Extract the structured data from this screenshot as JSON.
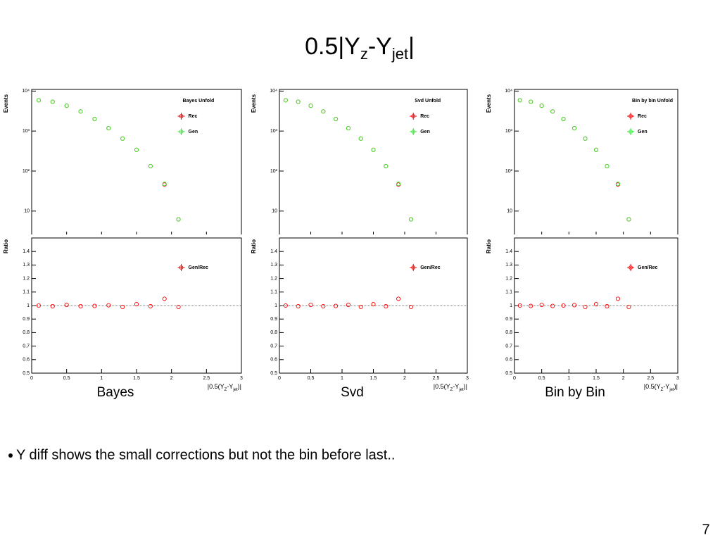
{
  "title": [
    "0.5|Y",
    "z",
    "-Y",
    "jet",
    "|"
  ],
  "bullet": "Y diff shows the small corrections but not the bin before last..",
  "page_number": "7",
  "chart_data": [
    {
      "type": "scatter",
      "ylabel": "Events",
      "legend_title": "Bayes Unfold",
      "legend": "upper right",
      "log_y": true,
      "x": [
        0.1,
        0.3,
        0.5,
        0.7,
        0.9,
        1.1,
        1.3,
        1.5,
        1.7,
        1.9,
        2.1
      ],
      "xlim": [
        0,
        3
      ],
      "xticks": [
        0,
        0.5,
        1,
        1.5,
        2,
        2.5,
        3
      ],
      "ylim": [
        2.4,
        11000
      ],
      "yticks": [
        {
          "value": 10,
          "label": "10"
        },
        {
          "value": 100,
          "label": "10²"
        },
        {
          "value": 1000,
          "label": "10³"
        },
        {
          "value": 10000,
          "label": "10⁴"
        }
      ],
      "series": [
        {
          "name": "Rec",
          "color": "#ff0000",
          "values": [
            5900,
            5400,
            4300,
            3100,
            2000,
            1180,
            650,
            340,
            133,
            46,
            6.2
          ]
        },
        {
          "name": "Gen",
          "color": "#33ee33",
          "values": [
            5900,
            5400,
            4300,
            3100,
            2000,
            1180,
            650,
            340,
            133,
            48,
            6.2
          ]
        }
      ]
    },
    {
      "type": "ratio",
      "ylabel": "Ratio",
      "xlabel": [
        "|0.5(Y",
        "Z",
        "-Y",
        "jet",
        ")|"
      ],
      "caption": "Bayes",
      "legend": "upper right",
      "x": [
        0.1,
        0.3,
        0.5,
        0.7,
        0.9,
        1.1,
        1.3,
        1.5,
        1.7,
        1.9,
        2.1
      ],
      "xlim": [
        0,
        3
      ],
      "xticks": [
        0,
        0.5,
        1,
        1.5,
        2,
        2.5,
        3
      ],
      "ylim": [
        0.5,
        1.5
      ],
      "yticks": [
        0.5,
        0.6,
        0.7,
        0.8,
        0.9,
        1,
        1.1,
        1.2,
        1.3,
        1.4
      ],
      "hline": 1,
      "series": [
        {
          "name": "Gen/Rec",
          "color": "#ff0000",
          "values": [
            1.0,
            0.995,
            1.005,
            0.995,
            0.997,
            1.002,
            0.99,
            1.01,
            0.995,
            1.05,
            0.99
          ]
        }
      ]
    },
    {
      "type": "scatter",
      "ylabel": "Events",
      "legend_title": "Svd Unfold",
      "legend": "upper right",
      "log_y": true,
      "x": [
        0.1,
        0.3,
        0.5,
        0.7,
        0.9,
        1.1,
        1.3,
        1.5,
        1.7,
        1.9,
        2.1
      ],
      "xlim": [
        0,
        3
      ],
      "xticks": [
        0,
        0.5,
        1,
        1.5,
        2,
        2.5,
        3
      ],
      "ylim": [
        2.4,
        11000
      ],
      "yticks": [
        {
          "value": 10,
          "label": "10"
        },
        {
          "value": 100,
          "label": "10²"
        },
        {
          "value": 1000,
          "label": "10³"
        },
        {
          "value": 10000,
          "label": "10⁴"
        }
      ],
      "series": [
        {
          "name": "Rec",
          "color": "#ff0000",
          "values": [
            5900,
            5400,
            4300,
            3100,
            2000,
            1180,
            650,
            340,
            133,
            46,
            6.2
          ]
        },
        {
          "name": "Gen",
          "color": "#33ee33",
          "values": [
            5900,
            5400,
            4300,
            3100,
            2000,
            1180,
            650,
            340,
            133,
            48,
            6.2
          ]
        }
      ]
    },
    {
      "type": "ratio",
      "ylabel": "Ratio",
      "xlabel": [
        "|0.5(Y",
        "Z",
        "-Y",
        "jet",
        ")|"
      ],
      "caption": "Svd",
      "legend": "upper right",
      "x": [
        0.1,
        0.3,
        0.5,
        0.7,
        0.9,
        1.1,
        1.3,
        1.5,
        1.7,
        1.9,
        2.1
      ],
      "xlim": [
        0,
        3
      ],
      "xticks": [
        0,
        0.5,
        1,
        1.5,
        2,
        2.5,
        3
      ],
      "ylim": [
        0.5,
        1.5
      ],
      "yticks": [
        0.5,
        0.6,
        0.7,
        0.8,
        0.9,
        1,
        1.1,
        1.2,
        1.3,
        1.4
      ],
      "hline": 1,
      "series": [
        {
          "name": "Gen/Rec",
          "color": "#ff0000",
          "values": [
            1.0,
            0.995,
            1.005,
            0.995,
            0.997,
            1.005,
            0.99,
            1.01,
            0.995,
            1.05,
            0.99
          ]
        }
      ]
    },
    {
      "type": "scatter",
      "ylabel": "Events",
      "legend_title": "Bin by bin Unfold",
      "legend": "upper right",
      "log_y": true,
      "x": [
        0.1,
        0.3,
        0.5,
        0.7,
        0.9,
        1.1,
        1.3,
        1.5,
        1.7,
        1.9,
        2.1
      ],
      "xlim": [
        0,
        3
      ],
      "xticks": [
        0,
        0.5,
        1,
        1.5,
        2,
        2.5,
        3
      ],
      "ylim": [
        2.4,
        11000
      ],
      "yticks": [
        {
          "value": 10,
          "label": "10"
        },
        {
          "value": 100,
          "label": "10²"
        },
        {
          "value": 1000,
          "label": "10³"
        },
        {
          "value": 10000,
          "label": "10⁴"
        }
      ],
      "series": [
        {
          "name": "Rec",
          "color": "#ff0000",
          "values": [
            5900,
            5400,
            4300,
            3100,
            2000,
            1180,
            650,
            340,
            133,
            46,
            6.2
          ]
        },
        {
          "name": "Gen",
          "color": "#33ee33",
          "values": [
            5900,
            5400,
            4300,
            3100,
            2000,
            1180,
            650,
            340,
            133,
            48,
            6.2
          ]
        }
      ]
    },
    {
      "type": "ratio",
      "ylabel": "Ratio",
      "xlabel": [
        "|0.5(Y",
        "Z",
        "-Y",
        "jet",
        ")|"
      ],
      "caption": "Bin by Bin",
      "legend": "upper right",
      "x": [
        0.1,
        0.3,
        0.5,
        0.7,
        0.9,
        1.1,
        1.3,
        1.5,
        1.7,
        1.9,
        2.1
      ],
      "xlim": [
        0,
        3
      ],
      "xticks": [
        0,
        0.5,
        1,
        1.5,
        2,
        2.5,
        3
      ],
      "ylim": [
        0.5,
        1.5
      ],
      "yticks": [
        0.5,
        0.6,
        0.7,
        0.8,
        0.9,
        1,
        1.1,
        1.2,
        1.3,
        1.4
      ],
      "hline": 1,
      "series": [
        {
          "name": "Gen/Rec",
          "color": "#ff0000",
          "values": [
            1.0,
            0.997,
            1.005,
            0.997,
            1.0,
            1.003,
            0.99,
            1.01,
            0.995,
            1.05,
            0.99
          ]
        }
      ]
    }
  ]
}
